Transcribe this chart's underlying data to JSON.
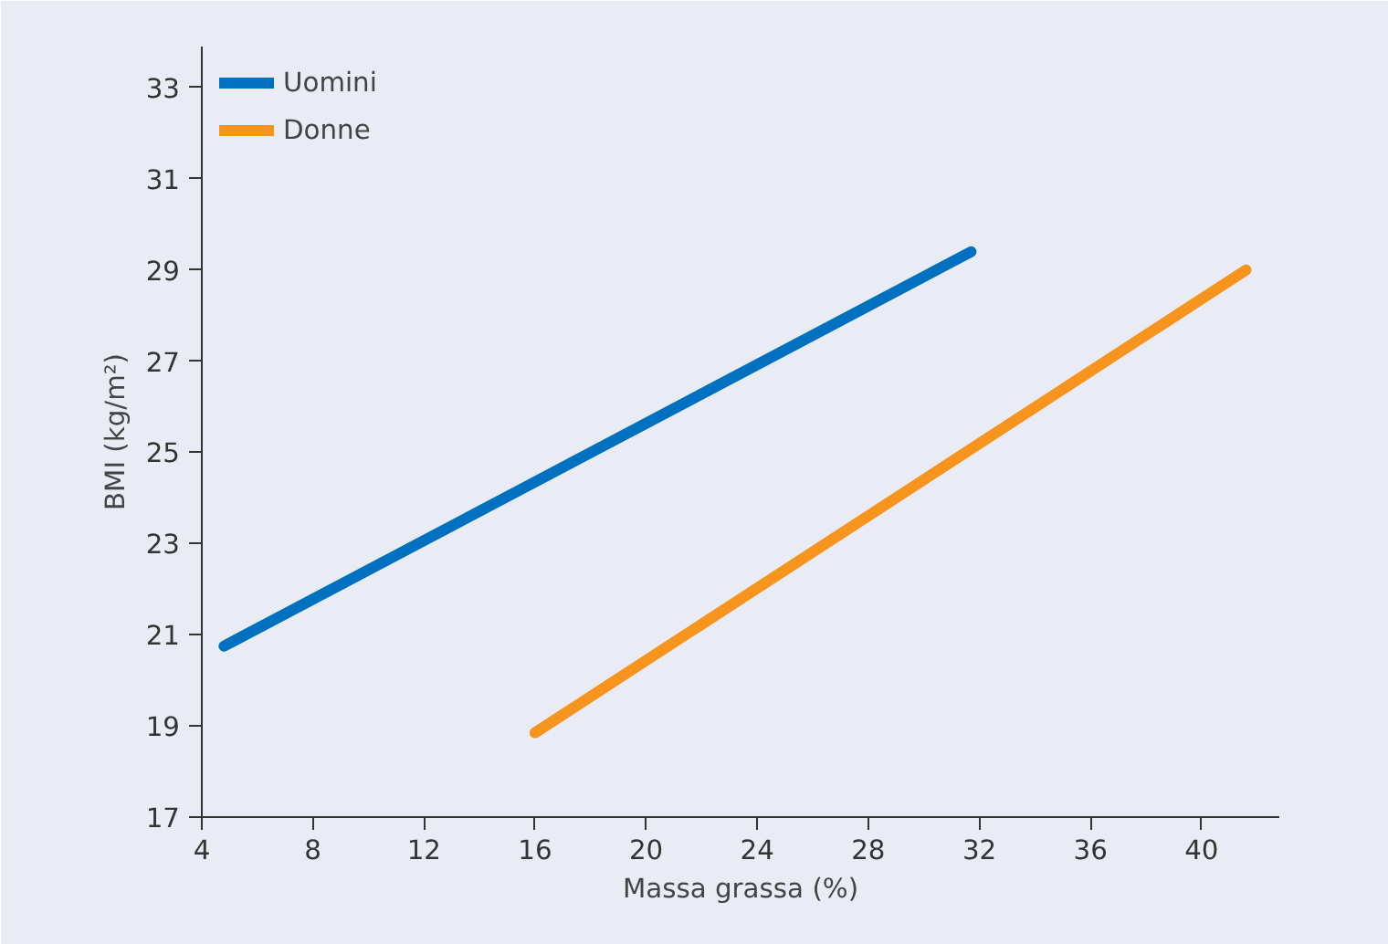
{
  "chart_data": {
    "type": "line",
    "xlabel": "Massa grassa (%)",
    "ylabel": "BMI (kg/m²)",
    "xlim": [
      4,
      42.8
    ],
    "ylim": [
      17,
      33.9
    ],
    "xticks": [
      4,
      8,
      12,
      16,
      20,
      24,
      28,
      32,
      36,
      40
    ],
    "yticks": [
      17,
      19,
      21,
      23,
      25,
      27,
      29,
      31,
      33
    ],
    "grid": false,
    "legend": "top left",
    "marker": "none",
    "line_style": "solid",
    "series": [
      {
        "name": "Uomini",
        "color": "#0070c0",
        "x": [
          4.8,
          31.7
        ],
        "values": [
          20.75,
          29.4
        ]
      },
      {
        "name": "Donne",
        "color": "#f7941d",
        "x": [
          16,
          41.6
        ],
        "values": [
          18.85,
          29.0
        ]
      }
    ]
  }
}
